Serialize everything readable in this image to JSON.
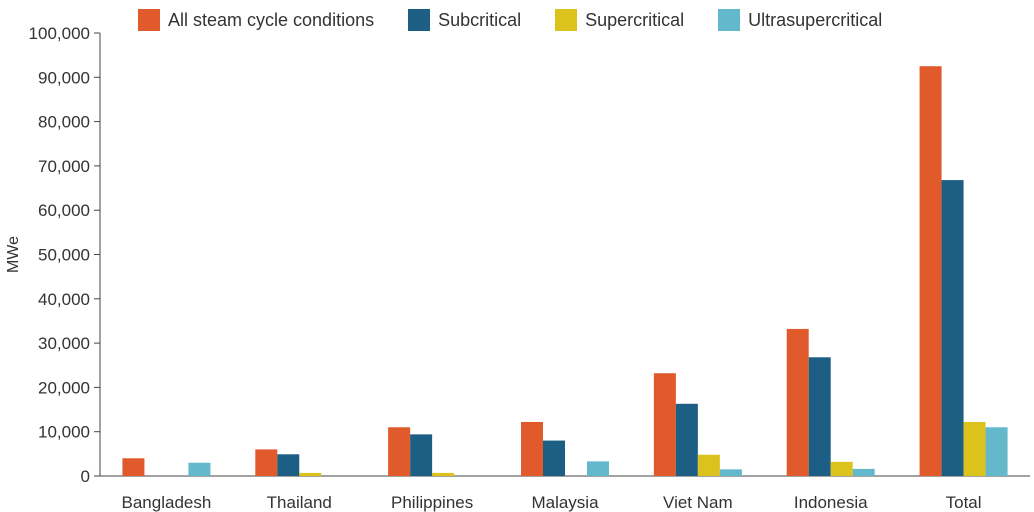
{
  "chart_data": {
    "type": "bar",
    "categories": [
      "Bangladesh",
      "Thailand",
      "Philippines",
      "Malaysia",
      "Viet Nam",
      "Indonesia",
      "Total"
    ],
    "series": [
      {
        "name": "All steam cycle conditions",
        "color": "#e05a2b",
        "values": [
          4000,
          6000,
          11000,
          12200,
          23200,
          33200,
          92500
        ]
      },
      {
        "name": "Subcritical",
        "color": "#1d5f84",
        "values": [
          0,
          4900,
          9400,
          8000,
          16300,
          26800,
          66800
        ]
      },
      {
        "name": "Supercritical",
        "color": "#dcc21c",
        "values": [
          0,
          700,
          700,
          0,
          4800,
          3200,
          12200
        ]
      },
      {
        "name": "Ultrasupercritical",
        "color": "#64b8cc",
        "values": [
          3000,
          0,
          0,
          3300,
          1500,
          1600,
          11000
        ]
      }
    ],
    "ylabel": "MWe",
    "ylim": [
      0,
      100000
    ],
    "yticks": [
      "0",
      "10,000",
      "20,000",
      "30,000",
      "40,000",
      "50,000",
      "60,000",
      "70,000",
      "80,000",
      "90,000",
      "100,000"
    ],
    "legend_position": "top"
  }
}
